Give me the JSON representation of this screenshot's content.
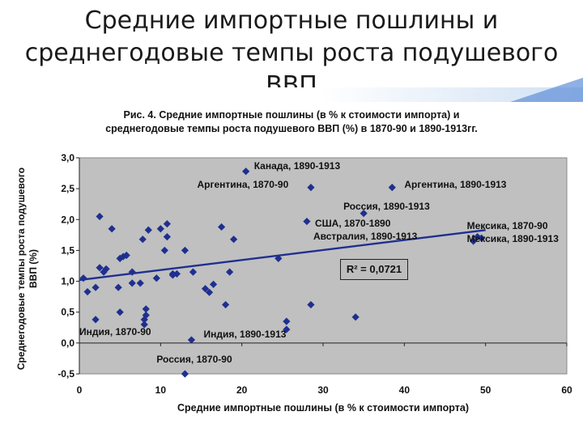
{
  "slide": {
    "title_line1": "Средние импортные пошлины и",
    "title_line2": "среднегодовые темпы роста подушевого",
    "title_line3": "ВВП"
  },
  "figure": {
    "caption_line1": "Рис. 4. Средние импортные пошлины (в % к стоимости импорта) и",
    "caption_line2": "среднегодовые темпы роста подушевого ВВП (%) в  1870-90 и 1890-1913гг.",
    "r2_label": "R² = 0,0721"
  },
  "chart_data": {
    "type": "scatter",
    "xlabel": "Средние импортные пошлины (в % к стоимости импорта)",
    "ylabel": "Среднегодовые темпы роста подушевого ВВП (%)",
    "xlim": [
      0,
      60
    ],
    "ylim": [
      -0.5,
      3.0
    ],
    "x_ticks": [
      "0",
      "10",
      "20",
      "30",
      "40",
      "50",
      "60"
    ],
    "y_ticks": [
      "-0,5",
      "0,0",
      "0,5",
      "1,0",
      "1,5",
      "2,0",
      "2,5",
      "3,0"
    ],
    "plot_background": "#c0c0c0",
    "marker_color": "#1f2f8f",
    "trendline_color": "#1f2f8f",
    "trendline": [
      [
        0,
        1.02
      ],
      [
        50,
        1.83
      ]
    ],
    "points": [
      [
        0.5,
        1.05
      ],
      [
        1.0,
        0.83
      ],
      [
        2.0,
        0.9
      ],
      [
        2.0,
        0.38
      ],
      [
        2.5,
        1.22
      ],
      [
        2.5,
        2.05
      ],
      [
        3.0,
        1.15
      ],
      [
        3.3,
        1.2
      ],
      [
        4.0,
        1.85
      ],
      [
        4.8,
        0.9
      ],
      [
        5.0,
        1.37
      ],
      [
        5.0,
        0.5
      ],
      [
        5.4,
        1.4
      ],
      [
        5.8,
        1.42
      ],
      [
        6.5,
        1.15
      ],
      [
        6.5,
        0.97
      ],
      [
        7.5,
        0.97
      ],
      [
        7.8,
        1.68
      ],
      [
        8.0,
        0.38
      ],
      [
        8.0,
        0.3
      ],
      [
        8.2,
        0.45
      ],
      [
        8.2,
        0.55
      ],
      [
        8.5,
        1.83
      ],
      [
        9.5,
        1.05
      ],
      [
        10.0,
        1.85
      ],
      [
        10.8,
        1.93
      ],
      [
        10.8,
        1.72
      ],
      [
        10.5,
        1.5
      ],
      [
        11.5,
        1.1
      ],
      [
        11.5,
        1.12
      ],
      [
        12.0,
        1.12
      ],
      [
        13.0,
        1.5
      ],
      [
        13.8,
        0.05
      ],
      [
        14.0,
        1.15
      ],
      [
        15.5,
        0.88
      ],
      [
        16.0,
        0.82
      ],
      [
        16.5,
        0.95
      ],
      [
        17.5,
        1.88
      ],
      [
        18.0,
        0.62
      ],
      [
        18.5,
        1.15
      ],
      [
        19.0,
        1.68
      ],
      [
        13.0,
        -0.5
      ],
      [
        20.5,
        2.78
      ],
      [
        24.5,
        1.37
      ],
      [
        25.5,
        0.35
      ],
      [
        25.5,
        0.22
      ],
      [
        28.0,
        1.97
      ],
      [
        28.5,
        2.52
      ],
      [
        28.5,
        0.62
      ],
      [
        34.0,
        0.42
      ],
      [
        35.0,
        2.1
      ],
      [
        38.5,
        2.52
      ],
      [
        48.5,
        1.65
      ],
      [
        49.0,
        1.72
      ],
      [
        49.5,
        1.7
      ]
    ],
    "annotations": [
      {
        "text": "Канада, 1890-1913",
        "x": 21.5,
        "y": 2.85
      },
      {
        "text": "Аргентина, 1870-90",
        "x": 14.5,
        "y": 2.55
      },
      {
        "text": "Аргентина, 1890-1913",
        "x": 40.0,
        "y": 2.55
      },
      {
        "text": "Россия, 1890-1913",
        "x": 32.5,
        "y": 2.2
      },
      {
        "text": "США, 1870-1890",
        "x": 29.0,
        "y": 1.92
      },
      {
        "text": "Австралия, 1890-1913",
        "x": 28.8,
        "y": 1.72
      },
      {
        "text": "Мексика, 1870-90",
        "x": 47.7,
        "y": 1.89
      },
      {
        "text": "Мексика, 1890-1913",
        "x": 47.7,
        "y": 1.67
      },
      {
        "text": "Индия, 1870-90",
        "x": 0.0,
        "y": 0.17
      },
      {
        "text": "Индия, 1890-1913",
        "x": 15.3,
        "y": 0.13
      },
      {
        "text": "Россия, 1870-90",
        "x": 9.5,
        "y": -0.28
      }
    ]
  }
}
